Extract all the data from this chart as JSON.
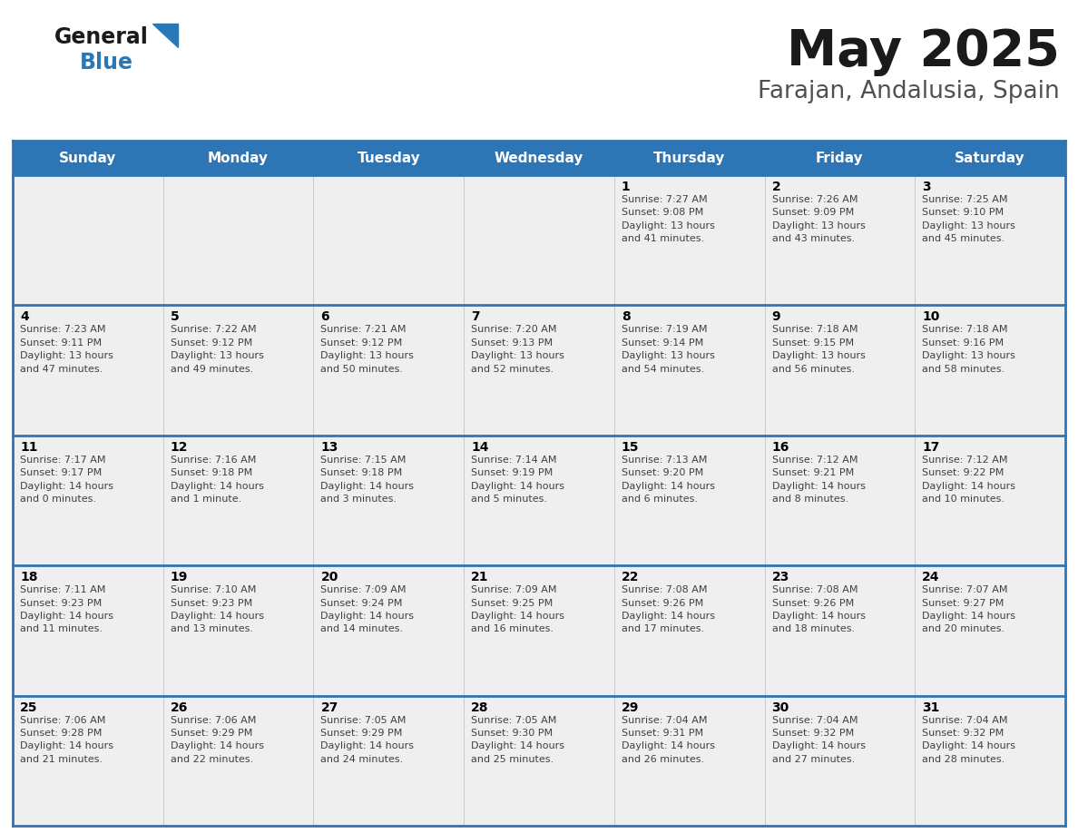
{
  "title": "May 2025",
  "subtitle": "Farajan, Andalusia, Spain",
  "header_color": "#2E75B6",
  "header_text_color": "#FFFFFF",
  "cell_bg_light": "#EFEFEF",
  "cell_bg_white": "#FFFFFF",
  "day_number_color": "#000000",
  "cell_text_color": "#404040",
  "grid_line_color": "#2E75B6",
  "days_of_week": [
    "Sunday",
    "Monday",
    "Tuesday",
    "Wednesday",
    "Thursday",
    "Friday",
    "Saturday"
  ],
  "weeks": [
    [
      {
        "day": 0,
        "info": ""
      },
      {
        "day": 0,
        "info": ""
      },
      {
        "day": 0,
        "info": ""
      },
      {
        "day": 0,
        "info": ""
      },
      {
        "day": 1,
        "info": "Sunrise: 7:27 AM\nSunset: 9:08 PM\nDaylight: 13 hours\nand 41 minutes."
      },
      {
        "day": 2,
        "info": "Sunrise: 7:26 AM\nSunset: 9:09 PM\nDaylight: 13 hours\nand 43 minutes."
      },
      {
        "day": 3,
        "info": "Sunrise: 7:25 AM\nSunset: 9:10 PM\nDaylight: 13 hours\nand 45 minutes."
      }
    ],
    [
      {
        "day": 4,
        "info": "Sunrise: 7:23 AM\nSunset: 9:11 PM\nDaylight: 13 hours\nand 47 minutes."
      },
      {
        "day": 5,
        "info": "Sunrise: 7:22 AM\nSunset: 9:12 PM\nDaylight: 13 hours\nand 49 minutes."
      },
      {
        "day": 6,
        "info": "Sunrise: 7:21 AM\nSunset: 9:12 PM\nDaylight: 13 hours\nand 50 minutes."
      },
      {
        "day": 7,
        "info": "Sunrise: 7:20 AM\nSunset: 9:13 PM\nDaylight: 13 hours\nand 52 minutes."
      },
      {
        "day": 8,
        "info": "Sunrise: 7:19 AM\nSunset: 9:14 PM\nDaylight: 13 hours\nand 54 minutes."
      },
      {
        "day": 9,
        "info": "Sunrise: 7:18 AM\nSunset: 9:15 PM\nDaylight: 13 hours\nand 56 minutes."
      },
      {
        "day": 10,
        "info": "Sunrise: 7:18 AM\nSunset: 9:16 PM\nDaylight: 13 hours\nand 58 minutes."
      }
    ],
    [
      {
        "day": 11,
        "info": "Sunrise: 7:17 AM\nSunset: 9:17 PM\nDaylight: 14 hours\nand 0 minutes."
      },
      {
        "day": 12,
        "info": "Sunrise: 7:16 AM\nSunset: 9:18 PM\nDaylight: 14 hours\nand 1 minute."
      },
      {
        "day": 13,
        "info": "Sunrise: 7:15 AM\nSunset: 9:18 PM\nDaylight: 14 hours\nand 3 minutes."
      },
      {
        "day": 14,
        "info": "Sunrise: 7:14 AM\nSunset: 9:19 PM\nDaylight: 14 hours\nand 5 minutes."
      },
      {
        "day": 15,
        "info": "Sunrise: 7:13 AM\nSunset: 9:20 PM\nDaylight: 14 hours\nand 6 minutes."
      },
      {
        "day": 16,
        "info": "Sunrise: 7:12 AM\nSunset: 9:21 PM\nDaylight: 14 hours\nand 8 minutes."
      },
      {
        "day": 17,
        "info": "Sunrise: 7:12 AM\nSunset: 9:22 PM\nDaylight: 14 hours\nand 10 minutes."
      }
    ],
    [
      {
        "day": 18,
        "info": "Sunrise: 7:11 AM\nSunset: 9:23 PM\nDaylight: 14 hours\nand 11 minutes."
      },
      {
        "day": 19,
        "info": "Sunrise: 7:10 AM\nSunset: 9:23 PM\nDaylight: 14 hours\nand 13 minutes."
      },
      {
        "day": 20,
        "info": "Sunrise: 7:09 AM\nSunset: 9:24 PM\nDaylight: 14 hours\nand 14 minutes."
      },
      {
        "day": 21,
        "info": "Sunrise: 7:09 AM\nSunset: 9:25 PM\nDaylight: 14 hours\nand 16 minutes."
      },
      {
        "day": 22,
        "info": "Sunrise: 7:08 AM\nSunset: 9:26 PM\nDaylight: 14 hours\nand 17 minutes."
      },
      {
        "day": 23,
        "info": "Sunrise: 7:08 AM\nSunset: 9:26 PM\nDaylight: 14 hours\nand 18 minutes."
      },
      {
        "day": 24,
        "info": "Sunrise: 7:07 AM\nSunset: 9:27 PM\nDaylight: 14 hours\nand 20 minutes."
      }
    ],
    [
      {
        "day": 25,
        "info": "Sunrise: 7:06 AM\nSunset: 9:28 PM\nDaylight: 14 hours\nand 21 minutes."
      },
      {
        "day": 26,
        "info": "Sunrise: 7:06 AM\nSunset: 9:29 PM\nDaylight: 14 hours\nand 22 minutes."
      },
      {
        "day": 27,
        "info": "Sunrise: 7:05 AM\nSunset: 9:29 PM\nDaylight: 14 hours\nand 24 minutes."
      },
      {
        "day": 28,
        "info": "Sunrise: 7:05 AM\nSunset: 9:30 PM\nDaylight: 14 hours\nand 25 minutes."
      },
      {
        "day": 29,
        "info": "Sunrise: 7:04 AM\nSunset: 9:31 PM\nDaylight: 14 hours\nand 26 minutes."
      },
      {
        "day": 30,
        "info": "Sunrise: 7:04 AM\nSunset: 9:32 PM\nDaylight: 14 hours\nand 27 minutes."
      },
      {
        "day": 31,
        "info": "Sunrise: 7:04 AM\nSunset: 9:32 PM\nDaylight: 14 hours\nand 28 minutes."
      }
    ]
  ],
  "logo_general_color": "#1a1a1a",
  "logo_blue_color": "#2979b8",
  "logo_triangle_color": "#2979b8"
}
